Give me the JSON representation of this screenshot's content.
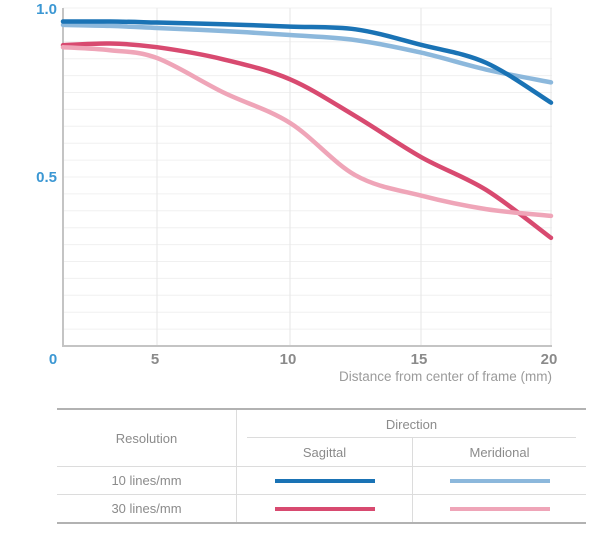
{
  "chart_data": {
    "type": "line",
    "title": "",
    "xlabel": "Distance from center of frame (mm)",
    "ylabel": "",
    "xlim": [
      0,
      20
    ],
    "ylim": [
      0,
      1
    ],
    "x_ticks": [
      0,
      5,
      10,
      15,
      20
    ],
    "y_ticks": [
      1.0,
      0.5,
      0
    ],
    "y_tick_labels": [
      "1.0",
      "0.5"
    ],
    "origin_label": "0",
    "minor_y_grid_step": 0.05,
    "grid": true,
    "legend_position": "bottom-table",
    "x": [
      0,
      2.5,
      5,
      7.5,
      10,
      12.5,
      15,
      17.5,
      20
    ],
    "series": [
      {
        "id": "s10m",
        "name": "10 lines/mm Meridional",
        "color": "#8cb8dc",
        "values": [
          0.95,
          0.947,
          0.941,
          0.932,
          0.92,
          0.905,
          0.868,
          0.818,
          0.78
        ]
      },
      {
        "id": "s10s",
        "name": "10 lines/mm Sagittal",
        "color": "#1a73b5",
        "values": [
          0.96,
          0.96,
          0.957,
          0.952,
          0.945,
          0.937,
          0.891,
          0.838,
          0.72
        ]
      },
      {
        "id": "s30s",
        "name": "30 lines/mm Sagittal",
        "color": "#d84a70",
        "values": [
          0.89,
          0.895,
          0.884,
          0.848,
          0.789,
          0.68,
          0.559,
          0.462,
          0.32
        ]
      },
      {
        "id": "s30m",
        "name": "30 lines/mm Meridional",
        "color": "#efa5b8",
        "values": [
          0.884,
          0.875,
          0.852,
          0.75,
          0.66,
          0.505,
          0.445,
          0.405,
          0.385
        ]
      }
    ],
    "colors": {
      "axis_label_blue": "#3b97d3",
      "tick_gray": "#8a8a8a",
      "axis_title_gray": "#9b9b9b",
      "minor_grid": "#f0f0f0",
      "vertical_grid": "#e6e6e6",
      "axis_line": "#c4c4c4"
    }
  },
  "legend_table": {
    "resolution_label": "Resolution",
    "direction_label": "Direction",
    "sagittal_label": "Sagittal",
    "meridional_label": "Meridional",
    "rows": [
      {
        "label": "10 lines/mm",
        "sagittal_series": "s10s",
        "meridional_series": "s10m"
      },
      {
        "label": "30 lines/mm",
        "sagittal_series": "s30s",
        "meridional_series": "s30m"
      }
    ],
    "border_dark": "#b2b2b2",
    "border_light": "#dcdcdc",
    "text_color": "#8b8b8b"
  }
}
